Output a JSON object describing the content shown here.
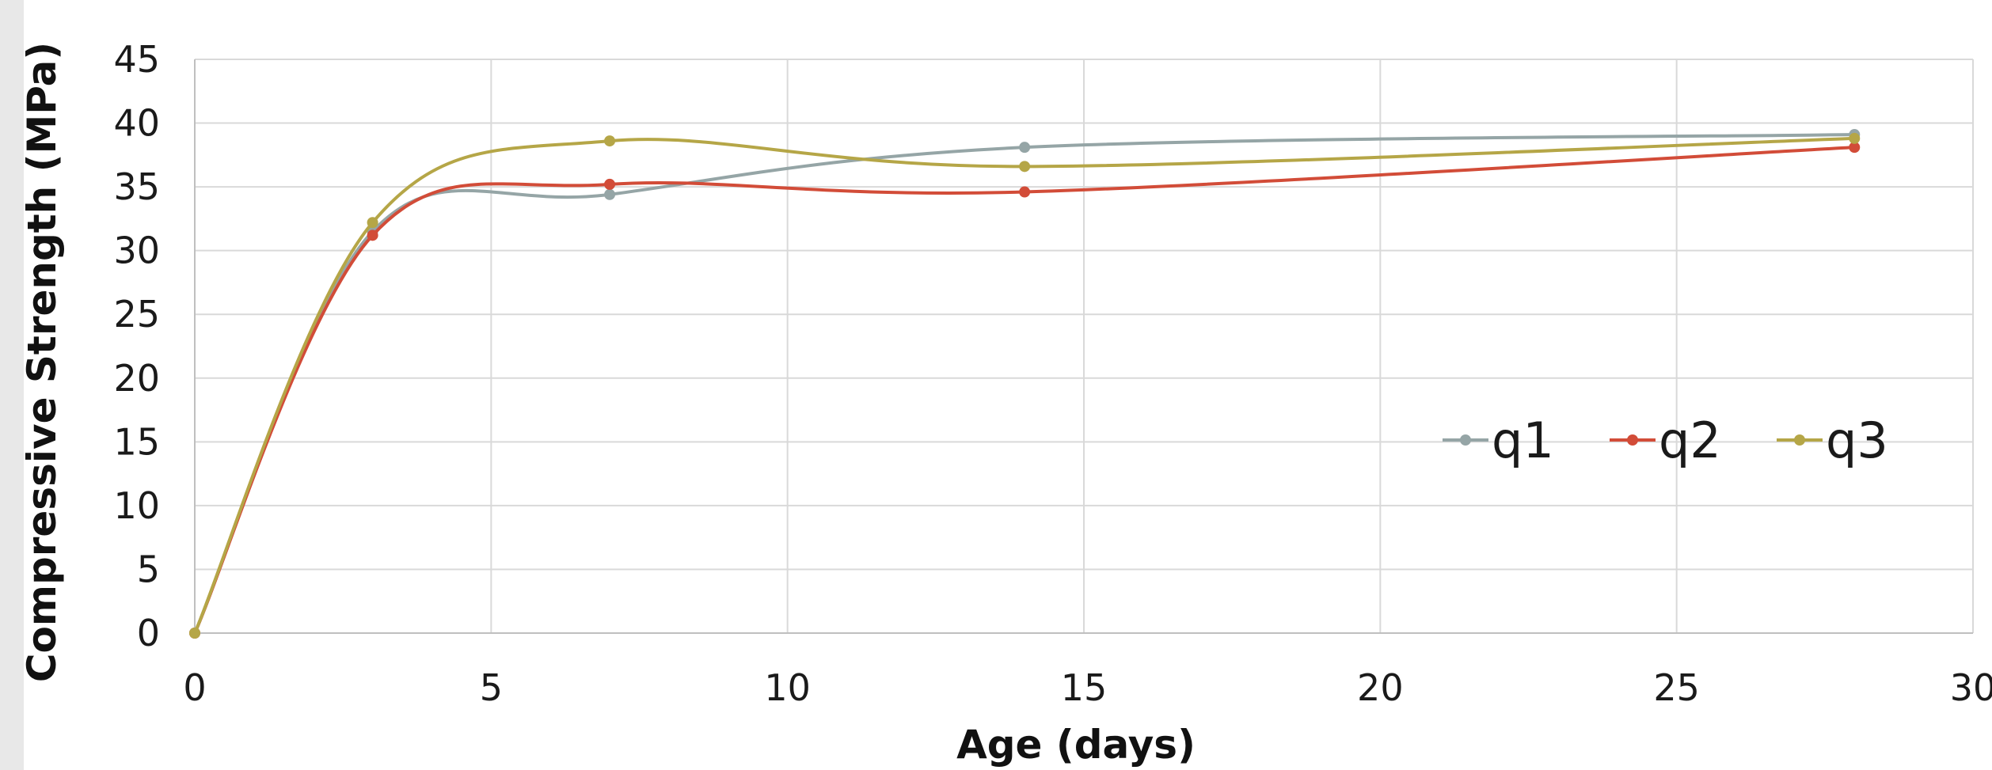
{
  "chart_data": {
    "type": "line",
    "title": "",
    "xlabel": "Age (days)",
    "ylabel": "Compressive Strength (MPa)",
    "xlim": [
      0,
      30
    ],
    "ylim": [
      0,
      45
    ],
    "x_ticks": [
      "0",
      "5",
      "10",
      "15",
      "20",
      "25",
      "30"
    ],
    "y_ticks": [
      "0",
      "5",
      "10",
      "15",
      "20",
      "25",
      "30",
      "35",
      "40",
      "45"
    ],
    "x": [
      0,
      3,
      7,
      14,
      28
    ],
    "series": [
      {
        "name": "q1",
        "color": "#95a5a6",
        "values": [
          0,
          31.5,
          34.4,
          38.1,
          39.1
        ]
      },
      {
        "name": "q2",
        "color": "#d24c38",
        "values": [
          0,
          31.2,
          35.2,
          34.6,
          38.1
        ]
      },
      {
        "name": "q3",
        "color": "#b5a647",
        "values": [
          0,
          32.2,
          38.6,
          36.6,
          38.8
        ]
      }
    ],
    "smooth": true,
    "markers": true,
    "grid": true,
    "legend_position": "center-right"
  }
}
